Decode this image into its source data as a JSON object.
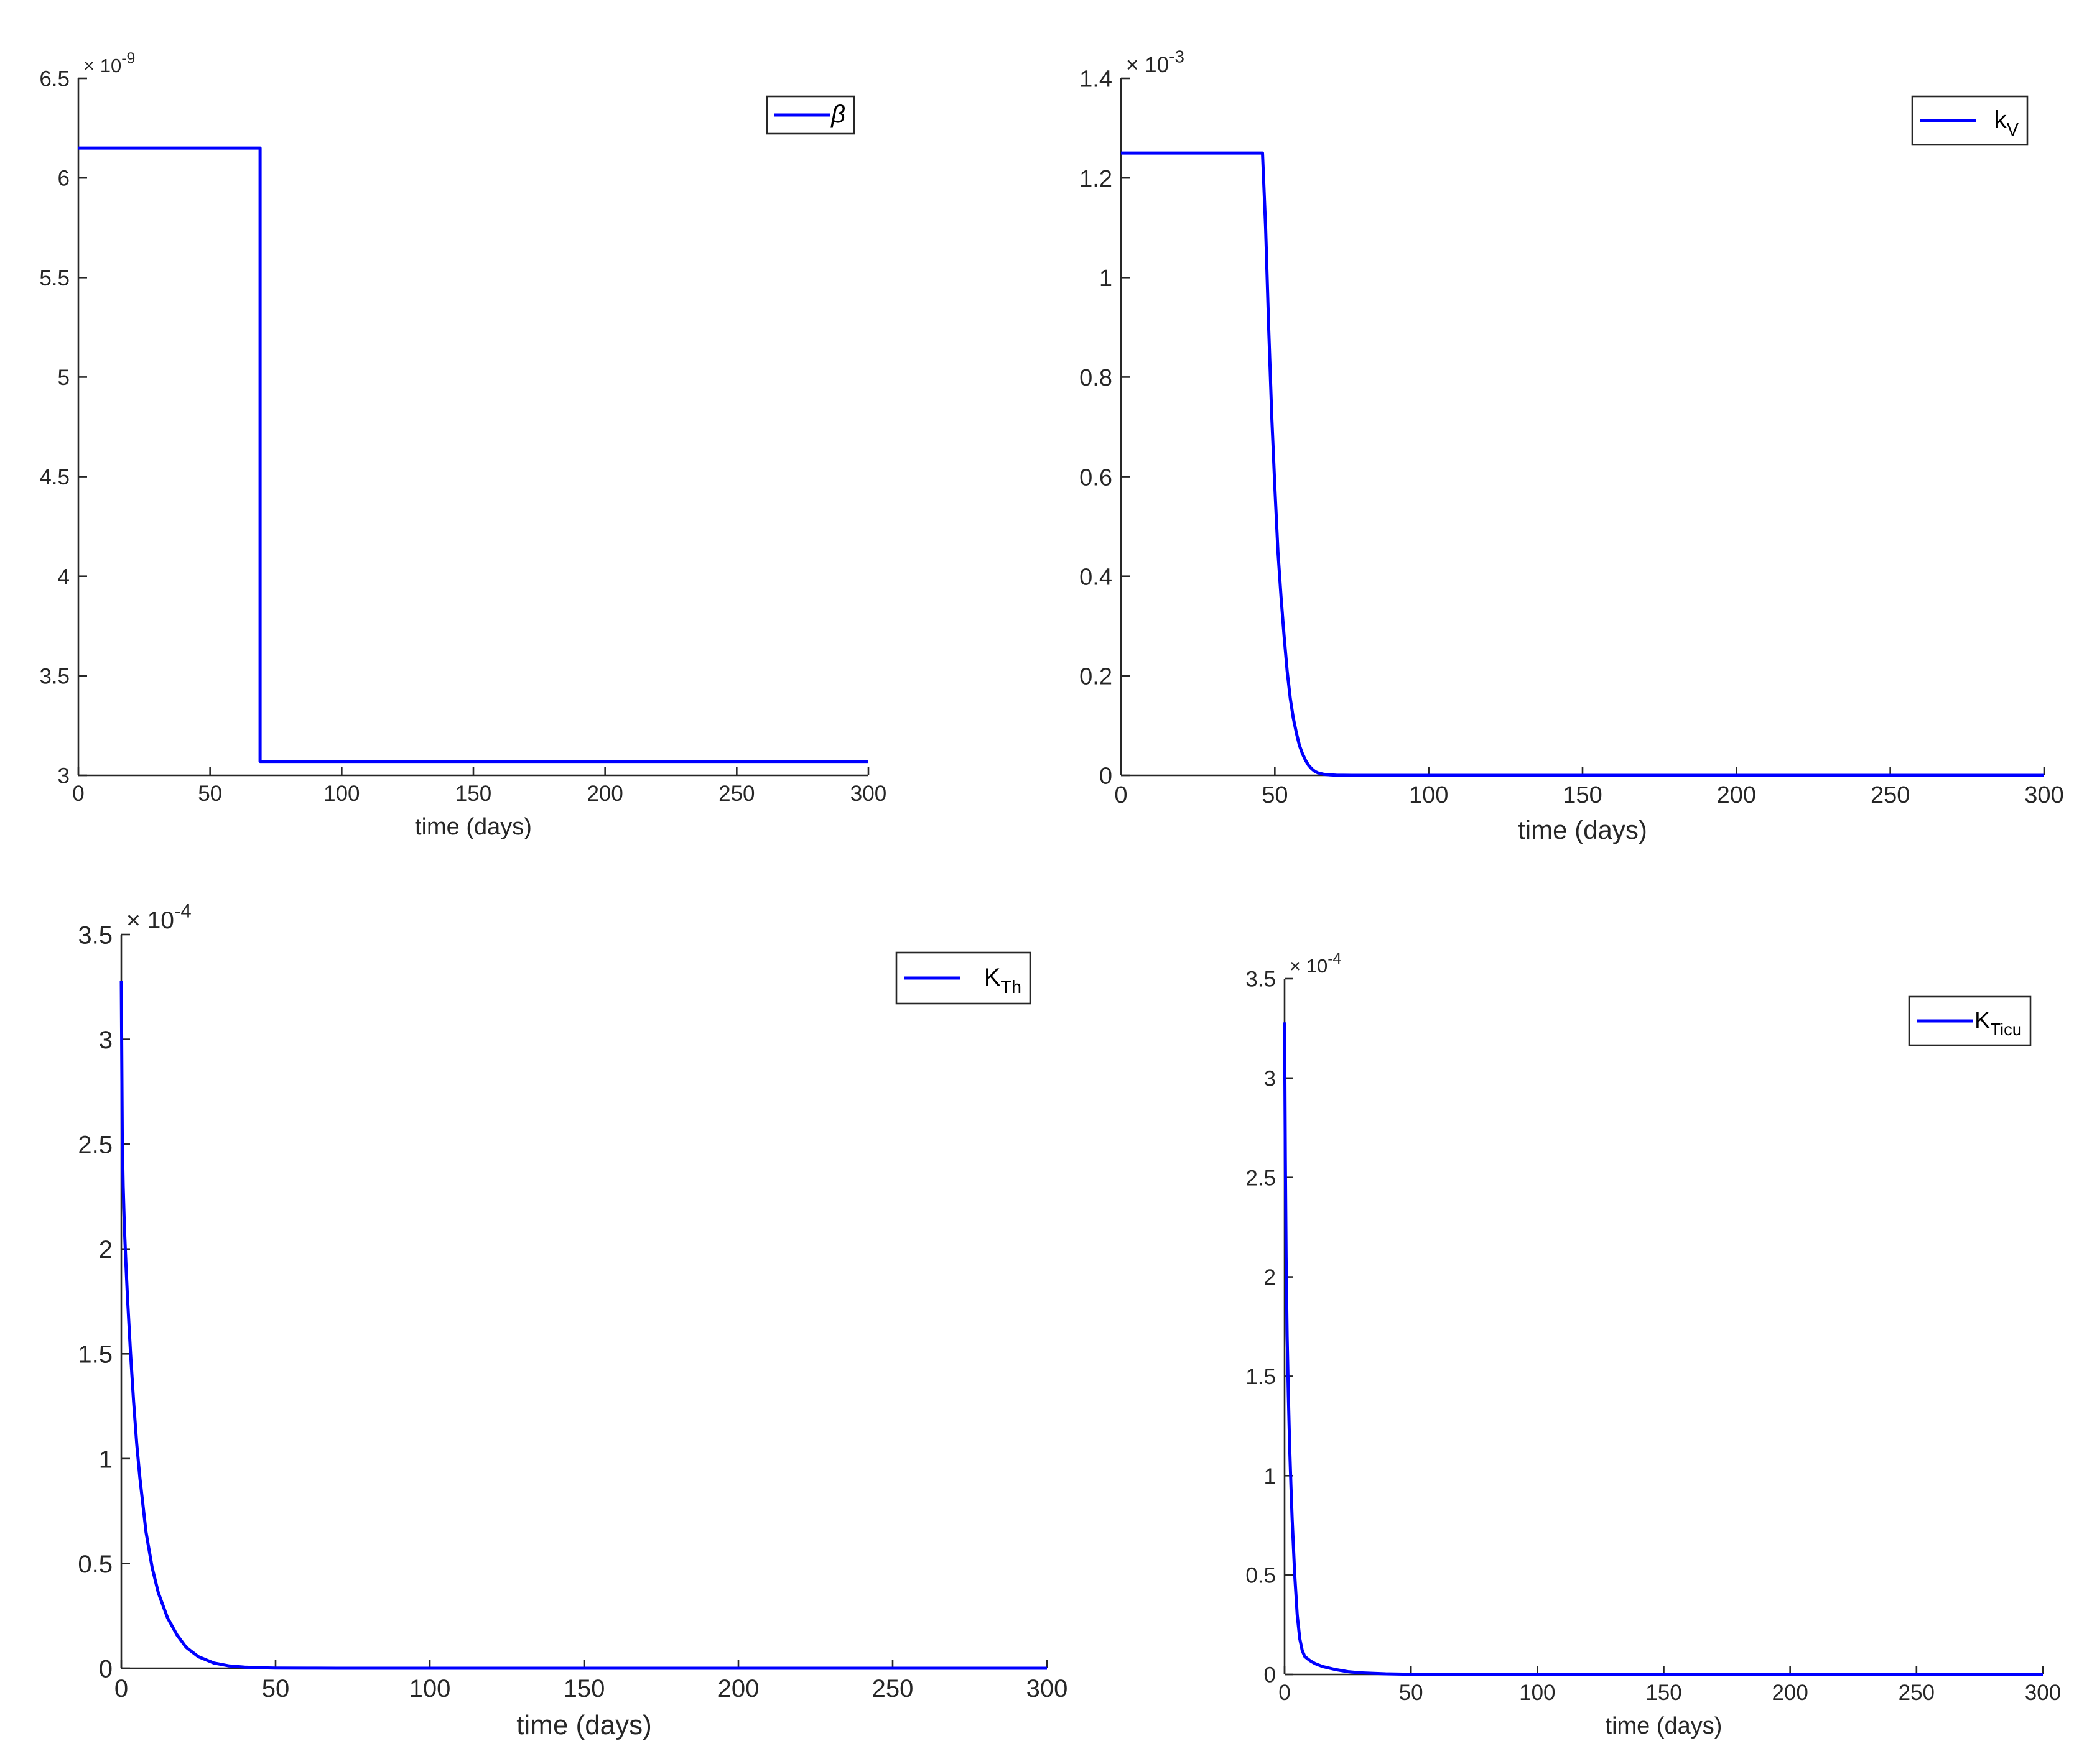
{
  "chart_data": [
    {
      "type": "line",
      "id": "beta",
      "xlabel": "time (days)",
      "ylabel": "",
      "xlim": [
        0,
        300
      ],
      "ylim": [
        3,
        6.5
      ],
      "xticks": [
        "0",
        "50",
        "100",
        "150",
        "200",
        "250",
        "300"
      ],
      "yticks": [
        "3",
        "3.5",
        "4",
        "4.5",
        "5",
        "5.5",
        "6",
        "6.5"
      ],
      "y_exponent_base": "× 10",
      "y_exponent": "-9",
      "legend_position": "top-right",
      "series": [
        {
          "name": "β",
          "color": "#0000ff",
          "x": [
            0,
            69,
            69,
            300
          ],
          "y": [
            6.15,
            6.15,
            3.07,
            3.07
          ]
        }
      ]
    },
    {
      "type": "line",
      "id": "kv",
      "xlabel": "time (days)",
      "ylabel": "",
      "xlim": [
        0,
        300
      ],
      "ylim": [
        0,
        1.4
      ],
      "xticks": [
        "0",
        "50",
        "100",
        "150",
        "200",
        "250",
        "300"
      ],
      "yticks": [
        "0",
        "0.2",
        "0.4",
        "0.6",
        "0.8",
        "1",
        "1.2",
        "1.4"
      ],
      "y_exponent_base": "× 10",
      "y_exponent": "-3",
      "legend_position": "top-right",
      "series": [
        {
          "name": "k",
          "subscript": "V",
          "color": "#0000ff",
          "x": [
            0,
            46,
            47,
            48,
            49,
            50,
            51,
            52,
            53,
            54,
            55,
            56,
            57,
            58,
            59,
            60,
            61,
            62,
            63,
            64,
            66,
            68,
            70,
            75,
            300
          ],
          "y": [
            1.25,
            1.25,
            1.1,
            0.9,
            0.72,
            0.58,
            0.45,
            0.36,
            0.28,
            0.21,
            0.155,
            0.115,
            0.085,
            0.06,
            0.043,
            0.03,
            0.02,
            0.013,
            0.008,
            0.005,
            0.002,
            0.001,
            0.0003,
            0,
            0
          ]
        }
      ]
    },
    {
      "type": "line",
      "id": "kth",
      "xlabel": "time (days)",
      "ylabel": "",
      "xlim": [
        0,
        300
      ],
      "ylim": [
        0,
        3.5
      ],
      "xticks": [
        "0",
        "50",
        "100",
        "150",
        "200",
        "250",
        "300"
      ],
      "yticks": [
        "0",
        "0.5",
        "1",
        "1.5",
        "2",
        "2.5",
        "3",
        "3.5"
      ],
      "y_exponent_base": "× 10",
      "y_exponent": "-4",
      "legend_position": "top-right",
      "series": [
        {
          "name": "K",
          "subscript": "Th",
          "color": "#0000ff",
          "x": [
            0,
            0.3,
            0.6,
            1,
            1.5,
            2,
            3,
            4,
            5,
            6,
            8,
            10,
            12,
            15,
            18,
            21,
            25,
            30,
            35,
            40,
            45,
            50,
            60,
            70,
            300
          ],
          "y": [
            3.28,
            2.55,
            2.3,
            2.1,
            1.93,
            1.77,
            1.5,
            1.27,
            1.07,
            0.91,
            0.65,
            0.48,
            0.36,
            0.24,
            0.16,
            0.1,
            0.055,
            0.025,
            0.011,
            0.005,
            0.002,
            0.001,
            0.0003,
            0,
            0
          ]
        }
      ]
    },
    {
      "type": "line",
      "id": "kticu",
      "xlabel": "time (days)",
      "ylabel": "",
      "xlim": [
        0,
        300
      ],
      "ylim": [
        0,
        3.5
      ],
      "xticks": [
        "0",
        "50",
        "100",
        "150",
        "200",
        "250",
        "300"
      ],
      "yticks": [
        "0",
        "0.5",
        "1",
        "1.5",
        "2",
        "2.5",
        "3",
        "3.5"
      ],
      "y_exponent_base": "× 10",
      "y_exponent": "-4",
      "legend_position": "top-right",
      "series": [
        {
          "name": "K",
          "subscript": "Ticu",
          "color": "#0000ff",
          "x": [
            0,
            0.3,
            0.6,
            1,
            1.5,
            2,
            2.5,
            3,
            4,
            5,
            6,
            7,
            8,
            10,
            12,
            15,
            20,
            25,
            30,
            40,
            50,
            70,
            300
          ],
          "y": [
            3.28,
            2.6,
            2.1,
            1.7,
            1.4,
            1.15,
            0.95,
            0.78,
            0.5,
            0.3,
            0.18,
            0.12,
            0.09,
            0.07,
            0.055,
            0.04,
            0.025,
            0.014,
            0.008,
            0.003,
            0.001,
            0,
            0
          ]
        }
      ]
    }
  ]
}
